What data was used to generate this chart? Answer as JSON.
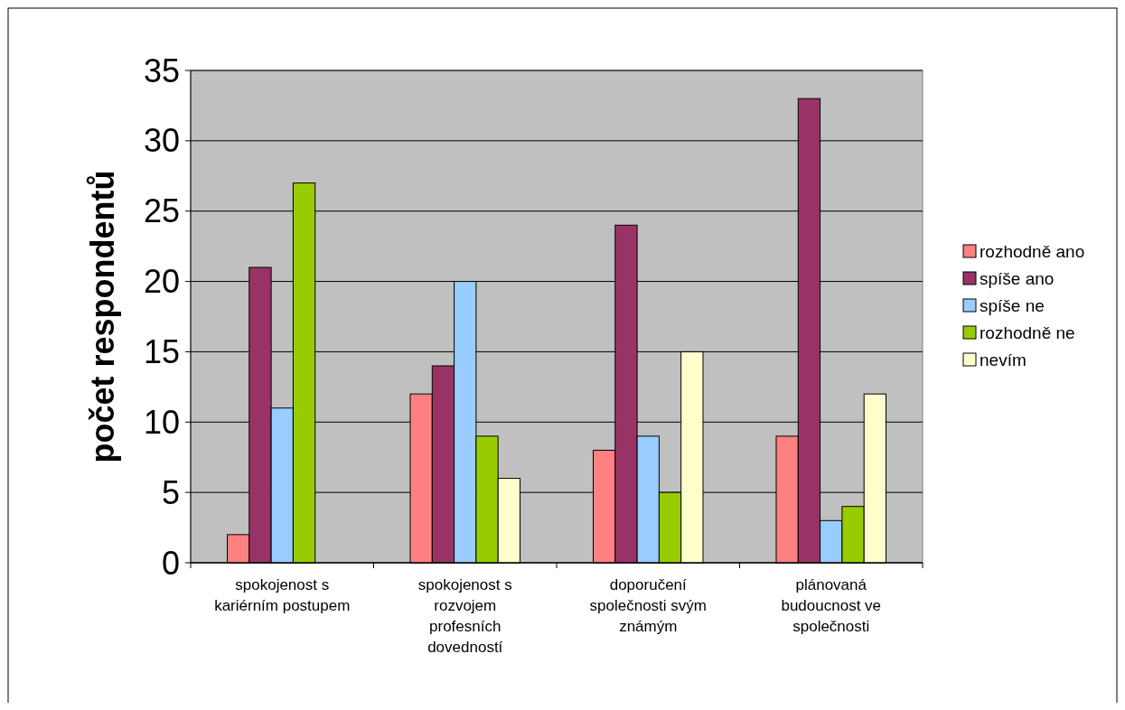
{
  "chart_data": {
    "type": "bar",
    "ylabel": "počet respondentů",
    "categories": [
      "spokojenost s kariérním postupem",
      "spokojenost s rozvojem profesních dovedností",
      "doporučení společnosti svým známým",
      "plánovaná budoucnost ve společnosti"
    ],
    "series": [
      {
        "name": "rozhodně ano",
        "color": "#ff8080",
        "values": [
          2,
          12,
          8,
          9
        ]
      },
      {
        "name": "spíše ano",
        "color": "#993366",
        "values": [
          21,
          14,
          24,
          33
        ]
      },
      {
        "name": "spíše ne",
        "color": "#99ccff",
        "values": [
          11,
          20,
          9,
          3
        ]
      },
      {
        "name": "rozhodně ne",
        "color": "#99cc00",
        "values": [
          27,
          9,
          5,
          4
        ]
      },
      {
        "name": "nevím",
        "color": "#ffffcc",
        "values": [
          null,
          6,
          15,
          12
        ]
      }
    ],
    "ylim": [
      0,
      35
    ],
    "yticks": [
      0,
      5,
      10,
      15,
      20,
      25,
      30,
      35
    ],
    "grid": "y",
    "legend": "right"
  }
}
